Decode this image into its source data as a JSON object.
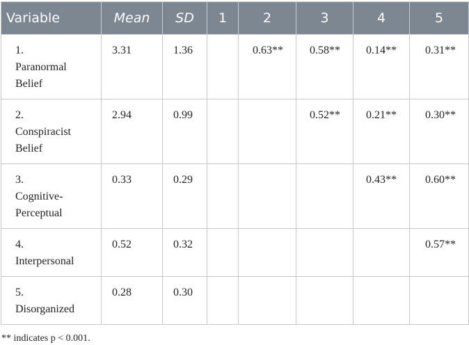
{
  "table": {
    "header": [
      "Variable",
      "Mean",
      "SD",
      "1",
      "2",
      "3",
      "4",
      "5"
    ],
    "rows": [
      [
        "1. Paranormal Belief",
        "3.31",
        "1.36",
        null,
        "0.63**",
        "0.58**",
        "0.14**",
        "0.31**"
      ],
      [
        "2. Conspiracist Belief",
        "2.94",
        "0.99",
        null,
        null,
        "0.52**",
        "0.21**",
        "0.30**"
      ],
      [
        "3. Cognitive-Perceptual",
        "0.33",
        "0.29",
        null,
        null,
        null,
        "0.43**",
        "0.60**"
      ],
      [
        "4. Interpersonal",
        "0.52",
        "0.32",
        null,
        null,
        null,
        null,
        "0.57**"
      ],
      [
        "5. Disorganized",
        "0.28",
        "0.30",
        null,
        null,
        null,
        null,
        null
      ]
    ]
  },
  "footnote": "** indicates p < 0.001."
}
